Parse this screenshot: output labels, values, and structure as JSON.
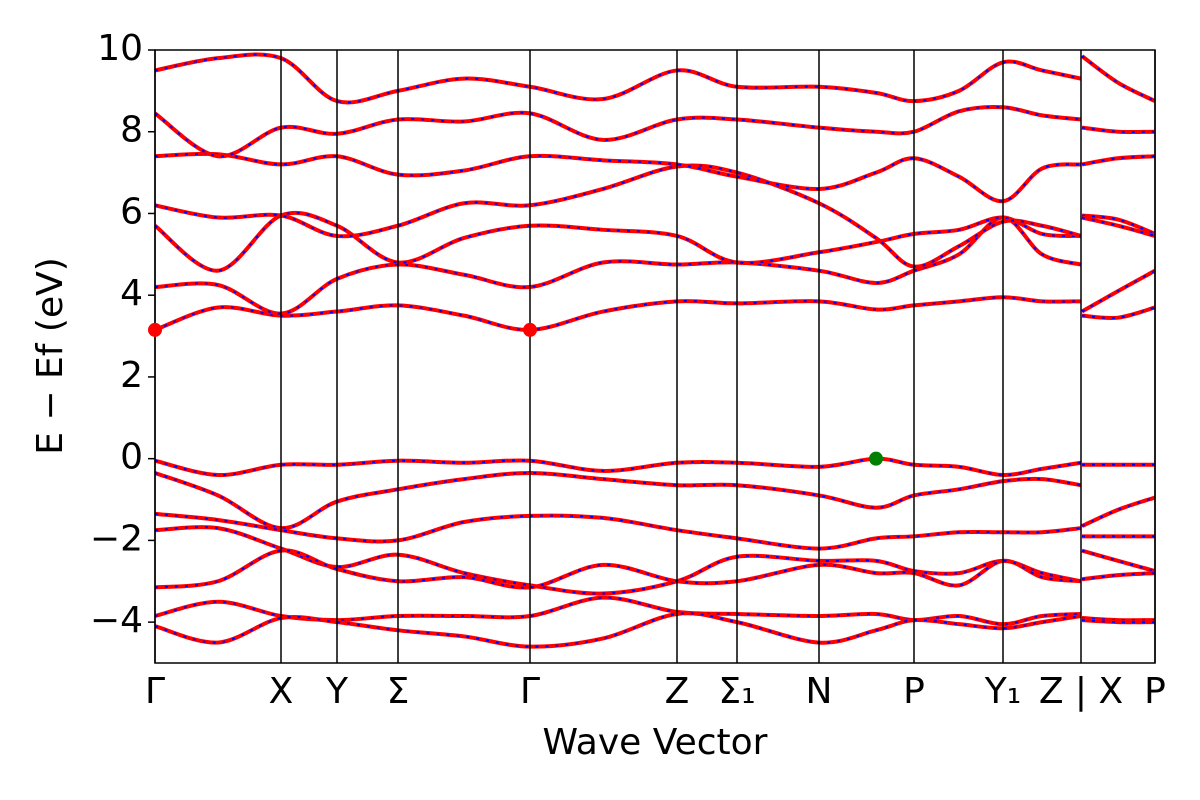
{
  "chart_data": {
    "type": "band",
    "xlabel": "Wave Vector",
    "ylabel": "E − Ef (eV)",
    "xlim": [
      0,
      10
    ],
    "ylim": [
      -5,
      10
    ],
    "xticks": [
      {
        "value": 0,
        "label": "Γ"
      },
      {
        "value": 1.26,
        "label": "X"
      },
      {
        "value": 1.82,
        "label": "Y"
      },
      {
        "value": 2.43,
        "label": "Σ"
      },
      {
        "value": 3.75,
        "label": "Γ"
      },
      {
        "value": 5.22,
        "label": "Z"
      },
      {
        "value": 5.82,
        "label": "Σ₁"
      },
      {
        "value": 6.64,
        "label": "N"
      },
      {
        "value": 7.59,
        "label": "P"
      },
      {
        "value": 8.48,
        "label": "Y₁"
      },
      {
        "value": 9.26,
        "label": "Z | X"
      },
      {
        "value": 10,
        "label": "P"
      }
    ],
    "yticks": [
      {
        "value": -4,
        "label": "−4"
      },
      {
        "value": -2,
        "label": "−2"
      },
      0,
      2,
      4,
      6,
      8,
      10
    ],
    "line_color": "#ff0000",
    "dash_color": "#0000ff",
    "x": [
      0,
      0.63,
      1.26,
      1.82,
      2.43,
      3.09,
      3.75,
      4.48,
      5.22,
      5.82,
      6.64,
      7.21,
      7.59,
      8.04,
      8.48,
      8.87,
      9.26,
      9.265,
      9.27,
      9.63,
      10
    ],
    "series": [
      {
        "values": [
          -0.05,
          -0.4,
          -0.15,
          -0.15,
          -0.05,
          -0.1,
          -0.05,
          -0.3,
          -0.1,
          -0.1,
          -0.2,
          0,
          -0.15,
          -0.2,
          -0.4,
          -0.25,
          -0.1,
          null,
          -0.15,
          -0.15,
          -0.15
        ]
      },
      {
        "values": [
          -0.35,
          -0.9,
          -1.7,
          -1.05,
          -0.75,
          -0.5,
          -0.35,
          -0.5,
          -0.65,
          -0.65,
          -0.9,
          -1.2,
          -0.9,
          -0.75,
          -0.55,
          -0.5,
          -0.65,
          null,
          -1.65,
          -1.25,
          -0.95
        ]
      },
      {
        "values": [
          -1.35,
          -1.5,
          -1.75,
          -1.95,
          -2.0,
          -1.55,
          -1.4,
          -1.45,
          -1.75,
          -1.95,
          -2.2,
          -1.95,
          -1.9,
          -1.8,
          -1.8,
          -1.8,
          -1.7,
          null,
          -1.9,
          -1.9,
          -1.9
        ]
      },
      {
        "values": [
          -1.75,
          -1.7,
          -2.2,
          -2.65,
          -2.35,
          -2.8,
          -3.1,
          -3.3,
          -3.0,
          -2.4,
          -2.5,
          -2.5,
          -2.75,
          -2.8,
          -2.5,
          -2.8,
          -3.0,
          null,
          -2.25,
          -2.5,
          -2.75
        ]
      },
      {
        "values": [
          -3.15,
          -3.0,
          -2.25,
          -2.7,
          -3.0,
          -2.9,
          -3.15,
          -2.6,
          -3.0,
          -3.0,
          -2.6,
          -2.8,
          -2.8,
          -3.1,
          -2.5,
          -2.9,
          -3.0,
          null,
          -2.95,
          -2.85,
          -2.8
        ]
      },
      {
        "values": [
          -3.85,
          -3.5,
          -3.85,
          -3.95,
          -3.85,
          -3.85,
          -3.85,
          -3.4,
          -3.75,
          -3.8,
          -3.85,
          -3.8,
          -3.95,
          -3.85,
          -4.05,
          -3.85,
          -3.8,
          null,
          -3.9,
          -3.95,
          -3.95
        ]
      },
      {
        "values": [
          -4.1,
          -4.5,
          -3.9,
          -4.0,
          -4.2,
          -4.35,
          -4.6,
          -4.4,
          -3.8,
          -4.0,
          -4.5,
          -4.2,
          -3.95,
          -4.05,
          -4.15,
          -4.0,
          -3.85,
          null,
          -3.95,
          -4.0,
          -4.0
        ]
      },
      {
        "values": [
          3.15,
          3.7,
          3.5,
          3.6,
          3.75,
          3.5,
          3.15,
          3.6,
          3.85,
          3.8,
          3.85,
          3.65,
          3.75,
          3.85,
          3.95,
          3.85,
          3.85,
          null,
          3.5,
          3.45,
          3.7
        ]
      },
      {
        "values": [
          4.2,
          4.25,
          3.55,
          4.4,
          4.75,
          4.5,
          4.2,
          4.8,
          4.75,
          4.8,
          4.6,
          4.3,
          4.6,
          5.0,
          5.9,
          5.0,
          4.75,
          null,
          3.6,
          4.1,
          4.6
        ]
      },
      {
        "values": [
          5.7,
          4.6,
          5.95,
          5.7,
          4.8,
          5.4,
          5.7,
          5.6,
          5.45,
          4.8,
          5.05,
          5.3,
          5.5,
          5.6,
          5.9,
          5.5,
          5.45,
          null,
          5.95,
          5.85,
          5.5
        ]
      },
      {
        "values": [
          6.2,
          5.9,
          5.95,
          5.45,
          5.7,
          6.25,
          6.2,
          6.6,
          7.15,
          7.0,
          6.25,
          5.4,
          4.7,
          5.2,
          5.8,
          5.7,
          5.45,
          null,
          5.9,
          5.7,
          5.45
        ]
      },
      {
        "values": [
          7.4,
          7.45,
          7.2,
          7.4,
          6.95,
          7.05,
          7.4,
          7.3,
          7.2,
          6.9,
          6.6,
          7.0,
          7.35,
          6.9,
          6.3,
          7.1,
          7.2,
          null,
          7.2,
          7.35,
          7.4
        ]
      },
      {
        "values": [
          8.45,
          7.4,
          8.1,
          7.95,
          8.3,
          8.25,
          8.45,
          7.8,
          8.3,
          8.3,
          8.1,
          8.0,
          8.0,
          8.5,
          8.6,
          8.4,
          8.3,
          null,
          8.1,
          8.0,
          8.0
        ]
      },
      {
        "values": [
          9.5,
          9.8,
          9.8,
          8.75,
          9.0,
          9.3,
          9.1,
          8.8,
          9.5,
          9.1,
          9.1,
          8.95,
          8.75,
          9.0,
          9.7,
          9.5,
          9.3,
          null,
          9.85,
          9.2,
          8.75
        ]
      }
    ],
    "markers": [
      {
        "x": 0,
        "y": 3.15,
        "color": "#ff0000"
      },
      {
        "x": 3.75,
        "y": 3.15,
        "color": "#ff0000"
      },
      {
        "x": 7.21,
        "y": 0,
        "color": "#008000"
      }
    ]
  }
}
